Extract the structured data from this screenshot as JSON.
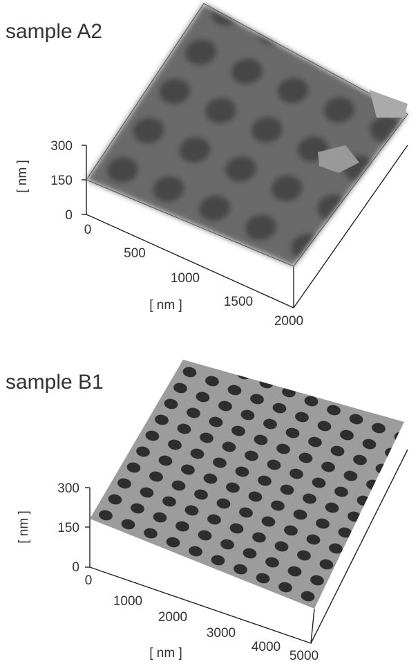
{
  "panels": [
    {
      "title": "sample A2",
      "z_axis_label": "[ nm ]",
      "z_ticks": [
        "300",
        "150",
        "0"
      ],
      "x_ticks": [
        "0",
        "500",
        "1000",
        "1500",
        "2000"
      ],
      "x_axis_label": "[ nm ]"
    },
    {
      "title": "sample B1",
      "z_axis_label": "[ nm ]",
      "z_ticks": [
        "300",
        "150",
        "0"
      ],
      "x_ticks": [
        "0",
        "1000",
        "2000",
        "3000",
        "4000",
        "5000"
      ],
      "x_axis_label": "[ nm ]"
    }
  ]
}
